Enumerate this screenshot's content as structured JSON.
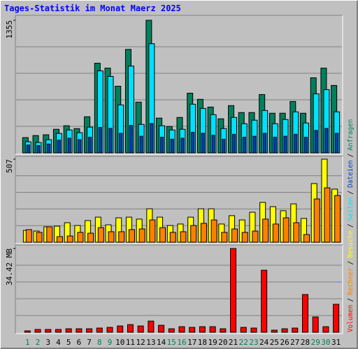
{
  "legend_separator": "/",
  "chart_data": [
    {
      "type": "bar",
      "title": "Tages-Statistik im Monat Maerz 2025",
      "ylim": [
        0,
        1355
      ],
      "yticks": [
        1355
      ],
      "series": [
        {
          "name": "Anfragen",
          "color": "#00805c",
          "values": [
            156,
            177,
            185,
            241,
            277,
            248,
            369,
            916,
            866,
            681,
            1057,
            518,
            1355,
            355,
            270,
            362,
            610,
            547,
            468,
            348,
            483,
            412,
            412,
            596,
            405,
            405,
            525,
            405,
            767,
            866,
            689
          ]
        },
        {
          "name": "Dateien",
          "color": "#0040c0",
          "values": [
            80,
            75,
            90,
            130,
            150,
            135,
            160,
            260,
            250,
            200,
            280,
            170,
            300,
            160,
            140,
            150,
            210,
            200,
            180,
            140,
            190,
            160,
            170,
            200,
            160,
            170,
            190,
            160,
            230,
            250,
            200
          ]
        },
        {
          "name": "Seiten",
          "color": "#00e0ff",
          "values": [
            114,
            106,
            135,
            199,
            234,
            206,
            263,
            838,
            781,
            490,
            887,
            291,
            1115,
            277,
            234,
            241,
            497,
            454,
            390,
            248,
            362,
            298,
            334,
            433,
            298,
            341,
            419,
            305,
            603,
            646,
            419
          ]
        }
      ]
    },
    {
      "type": "bar",
      "ylim": [
        0,
        507
      ],
      "yticks": [
        507
      ],
      "series": [
        {
          "name": "Besuche",
          "color": "#ffff00",
          "values": [
            72,
            68,
            94,
            98,
            119,
            102,
            132,
            153,
            106,
            149,
            153,
            141,
            204,
            153,
            102,
            111,
            153,
            204,
            204,
            111,
            162,
            136,
            183,
            243,
            217,
            192,
            234,
            145,
            358,
            507,
            324
          ]
        },
        {
          "name": "Rechner",
          "color": "#ff8000",
          "values": [
            77,
            60,
            94,
            34,
            38,
            60,
            55,
            89,
            64,
            64,
            77,
            81,
            136,
            89,
            60,
            64,
            102,
            115,
            136,
            60,
            81,
            60,
            68,
            141,
            111,
            149,
            119,
            47,
            264,
            332,
            285
          ]
        }
      ]
    },
    {
      "type": "bar",
      "ylim": [
        0,
        34.42
      ],
      "yticks": [
        {
          "value": 34.42,
          "label": "34.42 MB"
        }
      ],
      "categories": [
        "1",
        "2",
        "3",
        "4",
        "5",
        "6",
        "7",
        "8",
        "9",
        "10",
        "11",
        "12",
        "13",
        "14",
        "15",
        "16",
        "17",
        "18",
        "19",
        "20",
        "21",
        "22",
        "23",
        "24",
        "25",
        "26",
        "27",
        "28",
        "29",
        "30",
        "31"
      ],
      "highlight": [
        0,
        1,
        7,
        8,
        14,
        15,
        21,
        22,
        28,
        29
      ],
      "highlight_color": "#00805c",
      "series": [
        {
          "name": "Volumen",
          "color": "#ff0000",
          "values": [
            0.57,
            1.15,
            1.15,
            1.15,
            1.43,
            1.43,
            1.43,
            1.72,
            2.0,
            2.58,
            3.15,
            2.58,
            4.59,
            2.87,
            1.43,
            2.29,
            2.0,
            2.29,
            2.29,
            1.43,
            34.42,
            2.0,
            1.72,
            25.5,
            0.86,
            1.43,
            1.72,
            15.5,
            6.3,
            2.29,
            11.5
          ]
        }
      ]
    }
  ]
}
